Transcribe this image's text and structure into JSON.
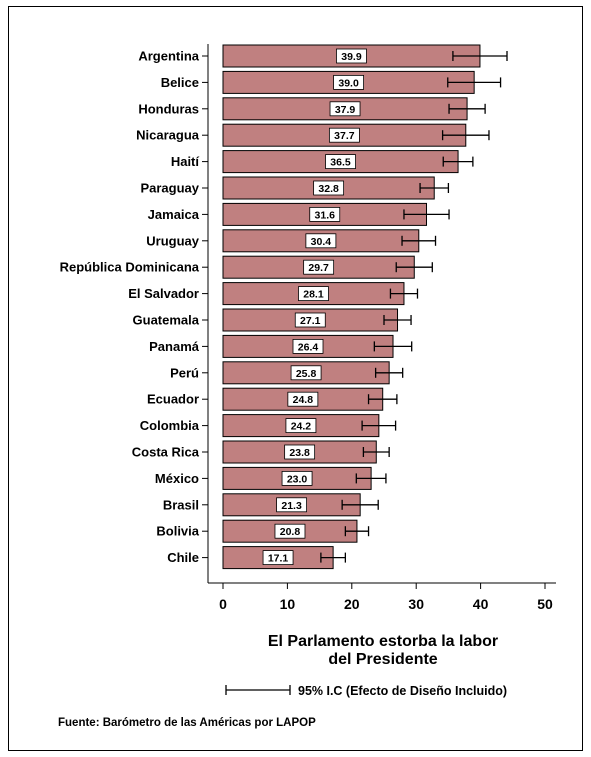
{
  "chart_data": {
    "type": "bar",
    "orientation": "horizontal",
    "categories": [
      "Argentina",
      "Belice",
      "Honduras",
      "Nicaragua",
      "Haití",
      "Paraguay",
      "Jamaica",
      "Uruguay",
      "República Dominicana",
      "El Salvador",
      "Guatemala",
      "Panamá",
      "Perú",
      "Ecuador",
      "Colombia",
      "Costa Rica",
      "México",
      "Brasil",
      "Bolivia",
      "Chile"
    ],
    "values": [
      39.9,
      39.0,
      37.9,
      37.7,
      36.5,
      32.8,
      31.6,
      30.4,
      29.7,
      28.1,
      27.1,
      26.4,
      25.8,
      24.8,
      24.2,
      23.8,
      23.0,
      21.3,
      20.8,
      17.1
    ],
    "value_labels": [
      "39.9",
      "39.0",
      "37.9",
      "37.7",
      "36.5",
      "32.8",
      "31.6",
      "30.4",
      "29.7",
      "28.1",
      "27.1",
      "26.4",
      "25.8",
      "24.8",
      "24.2",
      "23.8",
      "23.0",
      "21.3",
      "20.8",
      "17.1"
    ],
    "ci_low": [
      35.7,
      34.9,
      35.1,
      34.1,
      34.2,
      30.6,
      28.1,
      27.8,
      26.9,
      26.0,
      25.0,
      23.5,
      23.7,
      22.6,
      21.6,
      21.8,
      20.7,
      18.5,
      19.0,
      15.2
    ],
    "ci_high": [
      44.1,
      43.1,
      40.7,
      41.3,
      38.8,
      35.0,
      35.1,
      33.0,
      32.5,
      30.2,
      29.2,
      29.3,
      27.9,
      27.0,
      26.8,
      25.8,
      25.3,
      24.1,
      22.6,
      19.0
    ],
    "xlabel": "El Parlamento estorba la labor del Presidente",
    "xlabel_lines": [
      "El Parlamento estorba la labor",
      "del Presidente"
    ],
    "xlim": [
      0,
      52
    ],
    "xticks": [
      "0",
      "10",
      "20",
      "30",
      "40",
      "50"
    ],
    "xtick_values": [
      0,
      10,
      20,
      30,
      40,
      50
    ],
    "grid": false,
    "bar_color": "#c08080",
    "legend": {
      "label": "95% I.C (Efecto de Diseño Incluido)",
      "placement": "bottom"
    },
    "source": "Fuente: Barómetro de las Américas por LAPOP"
  }
}
